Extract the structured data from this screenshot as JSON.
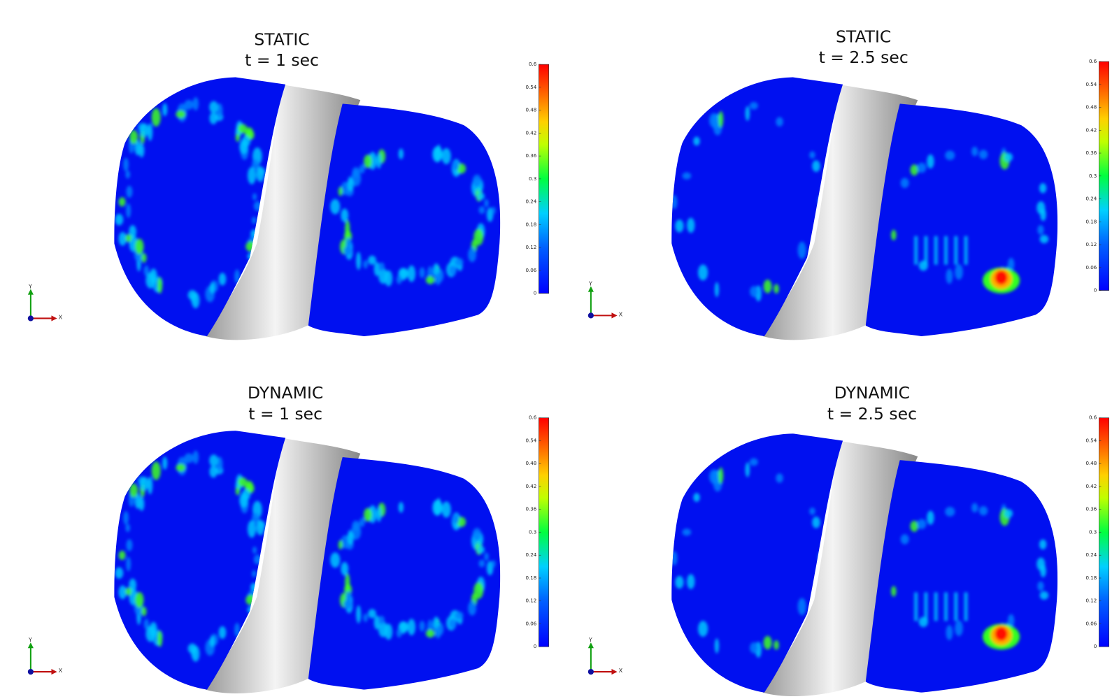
{
  "panels": [
    {
      "title": "STATIC",
      "time": "t = 1 sec"
    },
    {
      "title": "STATIC",
      "time": "t = 2.5 sec"
    },
    {
      "title": "DYNAMIC",
      "time": "t = 1 sec"
    },
    {
      "title": "DYNAMIC",
      "time": "t = 2.5 sec"
    }
  ],
  "colorbar": {
    "ticks": [
      0,
      0.06,
      0.12,
      0.18,
      0.24,
      0.3,
      0.36,
      0.42,
      0.48,
      0.54,
      0.6
    ]
  },
  "triad": {
    "x": "X",
    "y": "Y"
  }
}
